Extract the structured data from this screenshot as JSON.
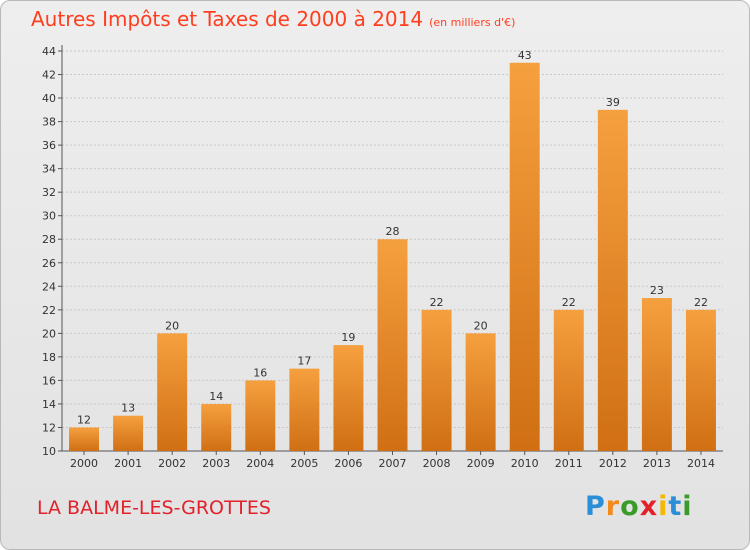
{
  "header": {
    "title": "Autres Impôts et Taxes de 2000 à 2014",
    "unit": "(en milliers d'€)"
  },
  "footer": {
    "commune": "LA BALME-LES-GROTTES",
    "logo": "Proxiti",
    "logo_colors": [
      "#2a8fd8",
      "#f28a1c",
      "#3a9a2a",
      "#e2212a",
      "#f5b800",
      "#2a8fd8",
      "#3a9a2a"
    ]
  },
  "chart_data": {
    "type": "bar",
    "title": "Autres Impôts et Taxes de 2000 à 2014",
    "subtitle": "(en milliers d'€)",
    "categories": [
      "2000",
      "2001",
      "2002",
      "2003",
      "2004",
      "2005",
      "2006",
      "2007",
      "2008",
      "2009",
      "2010",
      "2011",
      "2012",
      "2013",
      "2014"
    ],
    "values": [
      12,
      13,
      20,
      14,
      16,
      17,
      19,
      28,
      22,
      20,
      43,
      22,
      39,
      23,
      22
    ],
    "data_labels": [
      "12",
      "13",
      "20",
      "14",
      "16",
      "17",
      "19",
      "28",
      "22",
      "20",
      "43",
      "22",
      "39",
      "23",
      "22"
    ],
    "y_ticks": [
      "10",
      "12",
      "14",
      "16",
      "18",
      "20",
      "22",
      "24",
      "26",
      "28",
      "30",
      "32",
      "34",
      "36",
      "38",
      "40",
      "42",
      "44"
    ],
    "ylim": [
      10,
      44
    ],
    "grid": true,
    "bar_color": "#f5a03f",
    "bar_color_dark": "#d06f14"
  }
}
